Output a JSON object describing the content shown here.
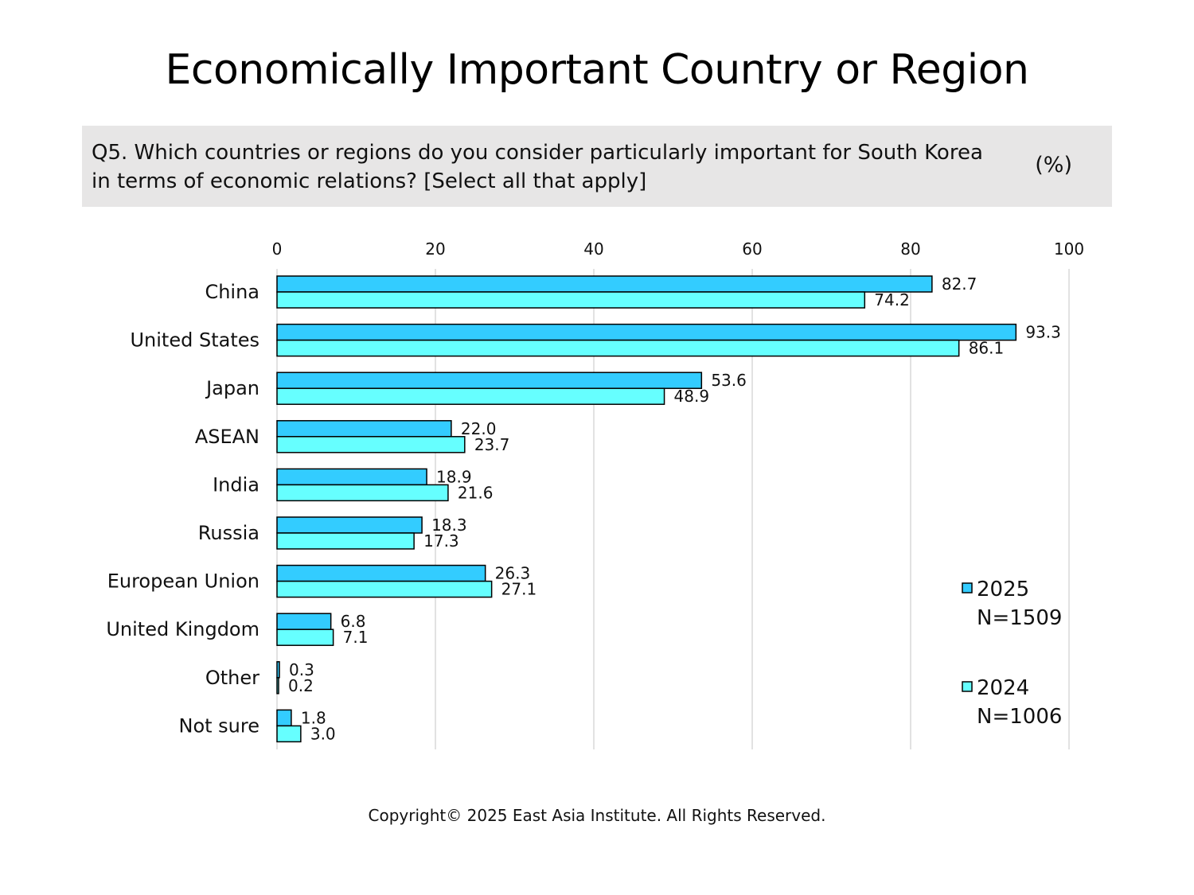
{
  "header": {
    "title": "Economically Important Country or Region",
    "question": "Q5. Which countries or regions do you consider particularly important for South Korea in terms of economic relations? [Select all that apply]",
    "unit": "(%)"
  },
  "footer": {
    "copyright": "Copyright© 2025 East Asia Institute. All Rights Reserved."
  },
  "colors": {
    "series_2025": "#33ccff",
    "series_2024": "#66ffff",
    "bar_outline": "#000000",
    "gridline": "#d9d9d9"
  },
  "chart_data": {
    "type": "bar",
    "orientation": "horizontal",
    "categories": [
      "China",
      "United States",
      "Japan",
      "ASEAN",
      "India",
      "Russia",
      "European Union",
      "United Kingdom",
      "Other",
      "Not sure"
    ],
    "series": [
      {
        "name": "2025",
        "sample": "N=1509",
        "values": [
          82.7,
          93.3,
          53.6,
          22.0,
          18.9,
          18.3,
          26.3,
          6.8,
          0.3,
          1.8
        ]
      },
      {
        "name": "2024",
        "sample": "N=1006",
        "values": [
          74.2,
          86.1,
          48.9,
          23.7,
          21.6,
          17.3,
          27.1,
          7.1,
          0.2,
          3.0
        ]
      }
    ],
    "xlim": [
      0,
      100
    ],
    "xticks": [
      0,
      20,
      40,
      60,
      80,
      100
    ],
    "xtick_position": "top",
    "grid": true,
    "legend_position": "bottom-right",
    "data_labels": true
  }
}
